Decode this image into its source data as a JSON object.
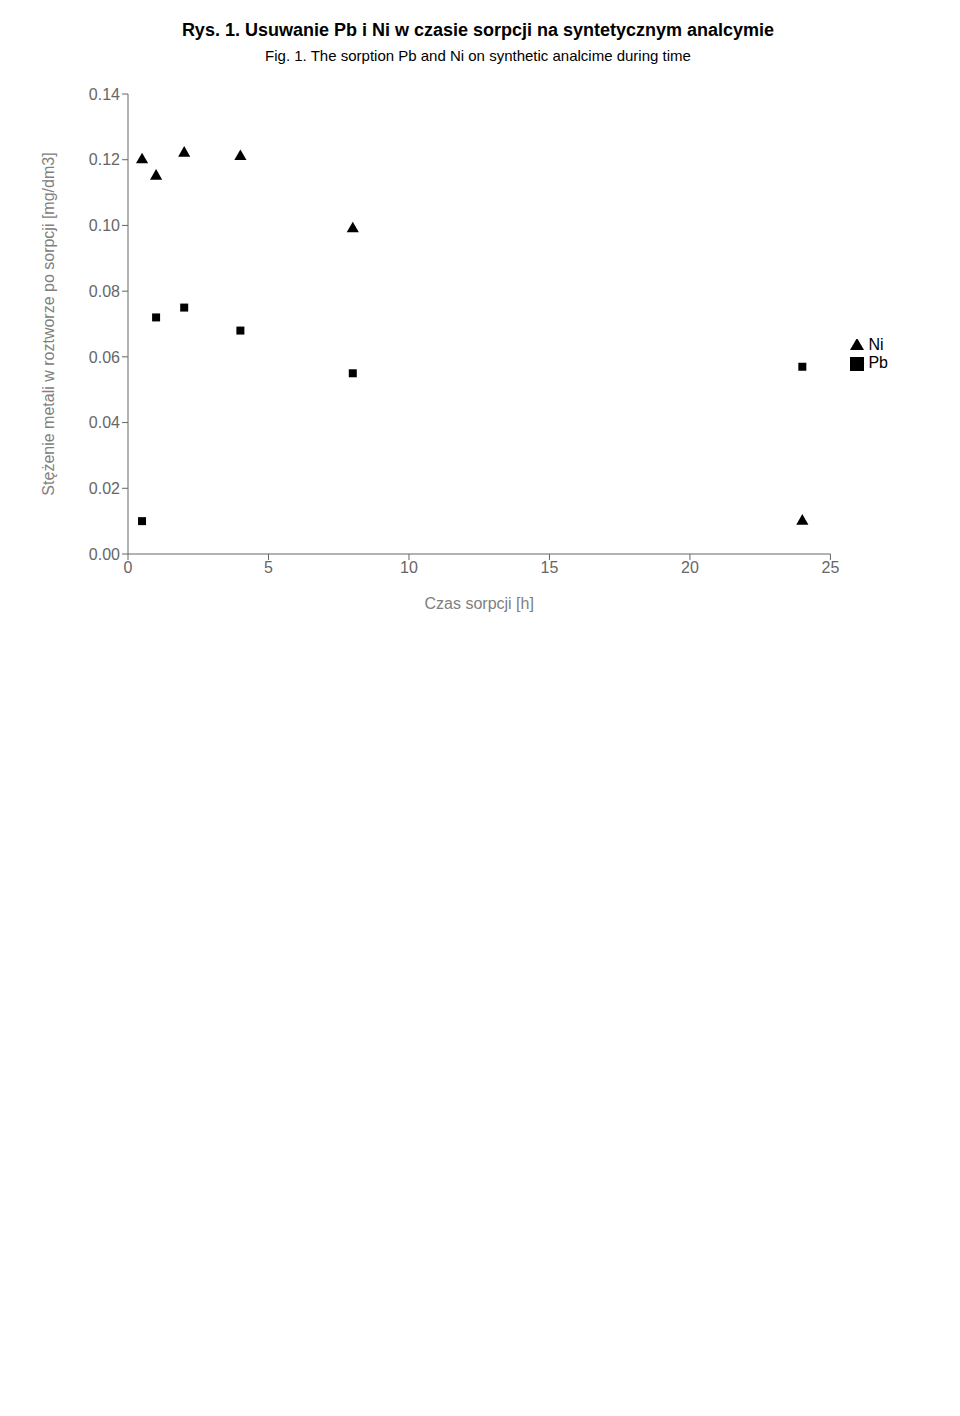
{
  "chart_data": {
    "type": "scatter",
    "title": "Rys. 1. Usuwanie Pb i Ni w czasie sorpcji na syntetycznym analcymie",
    "subtitle": "Fig. 1. The sorption Pb and Ni on synthetic analcime during time",
    "x_label": "Czas sorpcji [h]",
    "y_label": "Stężenie metali w roztworze po sorpcji [mg/dm3]",
    "x": [
      0.5,
      1.0,
      2.0,
      4.0,
      8.0,
      24.0
    ],
    "series": [
      {
        "name": "Pb",
        "color": "#000000",
        "marker": "square",
        "values": [
          0.01,
          0.072,
          0.075,
          0.068,
          0.055,
          0.057
        ]
      },
      {
        "name": "Ni",
        "color": "#000000",
        "marker": "triangle",
        "values": [
          0.12,
          0.115,
          0.122,
          0.121,
          0.099,
          0.01
        ]
      }
    ],
    "xlim": [
      0,
      25
    ],
    "xticks": [
      0,
      5,
      10,
      15,
      20,
      25
    ],
    "ylim": [
      0.0,
      0.14
    ],
    "yticks": [
      {
        "value": 0.0,
        "label": "0.00"
      },
      0.02,
      0.04,
      0.06,
      0.08,
      {
        "value": 0.1,
        "label": "0.10"
      },
      0.12,
      0.14
    ],
    "grid": false,
    "legend": "right"
  }
}
